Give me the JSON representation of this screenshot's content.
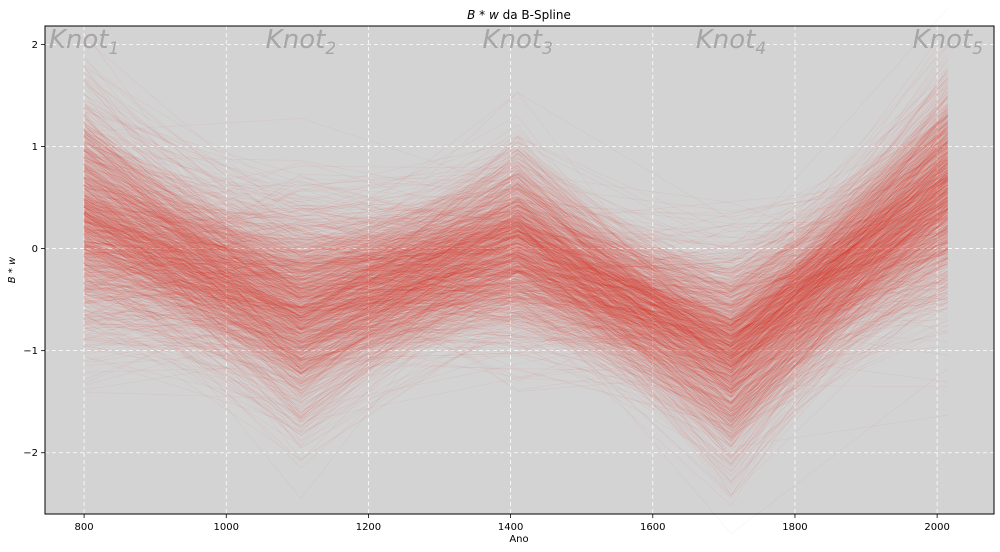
{
  "chart_data": {
    "type": "line",
    "title_main": "B * w",
    "title_suffix": " da B-Spline",
    "xlabel": "Ano",
    "ylabel": "B * w",
    "xlim": [
      745,
      2080
    ],
    "ylim": [
      -2.6,
      2.18
    ],
    "x_ticks": [
      800,
      1000,
      1200,
      1400,
      1600,
      1800,
      2000
    ],
    "y_ticks": [
      -2,
      -1,
      0,
      1,
      2
    ],
    "y_tick_labels": [
      "−2",
      "−1",
      "0",
      "1",
      "2"
    ],
    "grid": true,
    "background": "#d3d3d3",
    "line_color": "#dc2a1e",
    "knots": [
      {
        "label": "Knot",
        "sub": "1",
        "x": 800
      },
      {
        "label": "Knot",
        "sub": "2",
        "x": 1105
      },
      {
        "label": "Knot",
        "sub": "3",
        "x": 1410
      },
      {
        "label": "Knot",
        "sub": "4",
        "x": 1710
      },
      {
        "label": "Knot",
        "sub": "5",
        "x": 2015
      }
    ],
    "curve_x": [
      800,
      1105,
      1410,
      1710,
      2015
    ],
    "knot_weight_distribution": {
      "mean": [
        0.3,
        -0.6,
        0.05,
        -1.0,
        0.55
      ],
      "spread": [
        0.6,
        0.55,
        0.5,
        0.55,
        0.55
      ]
    },
    "n_curves": 1500
  }
}
